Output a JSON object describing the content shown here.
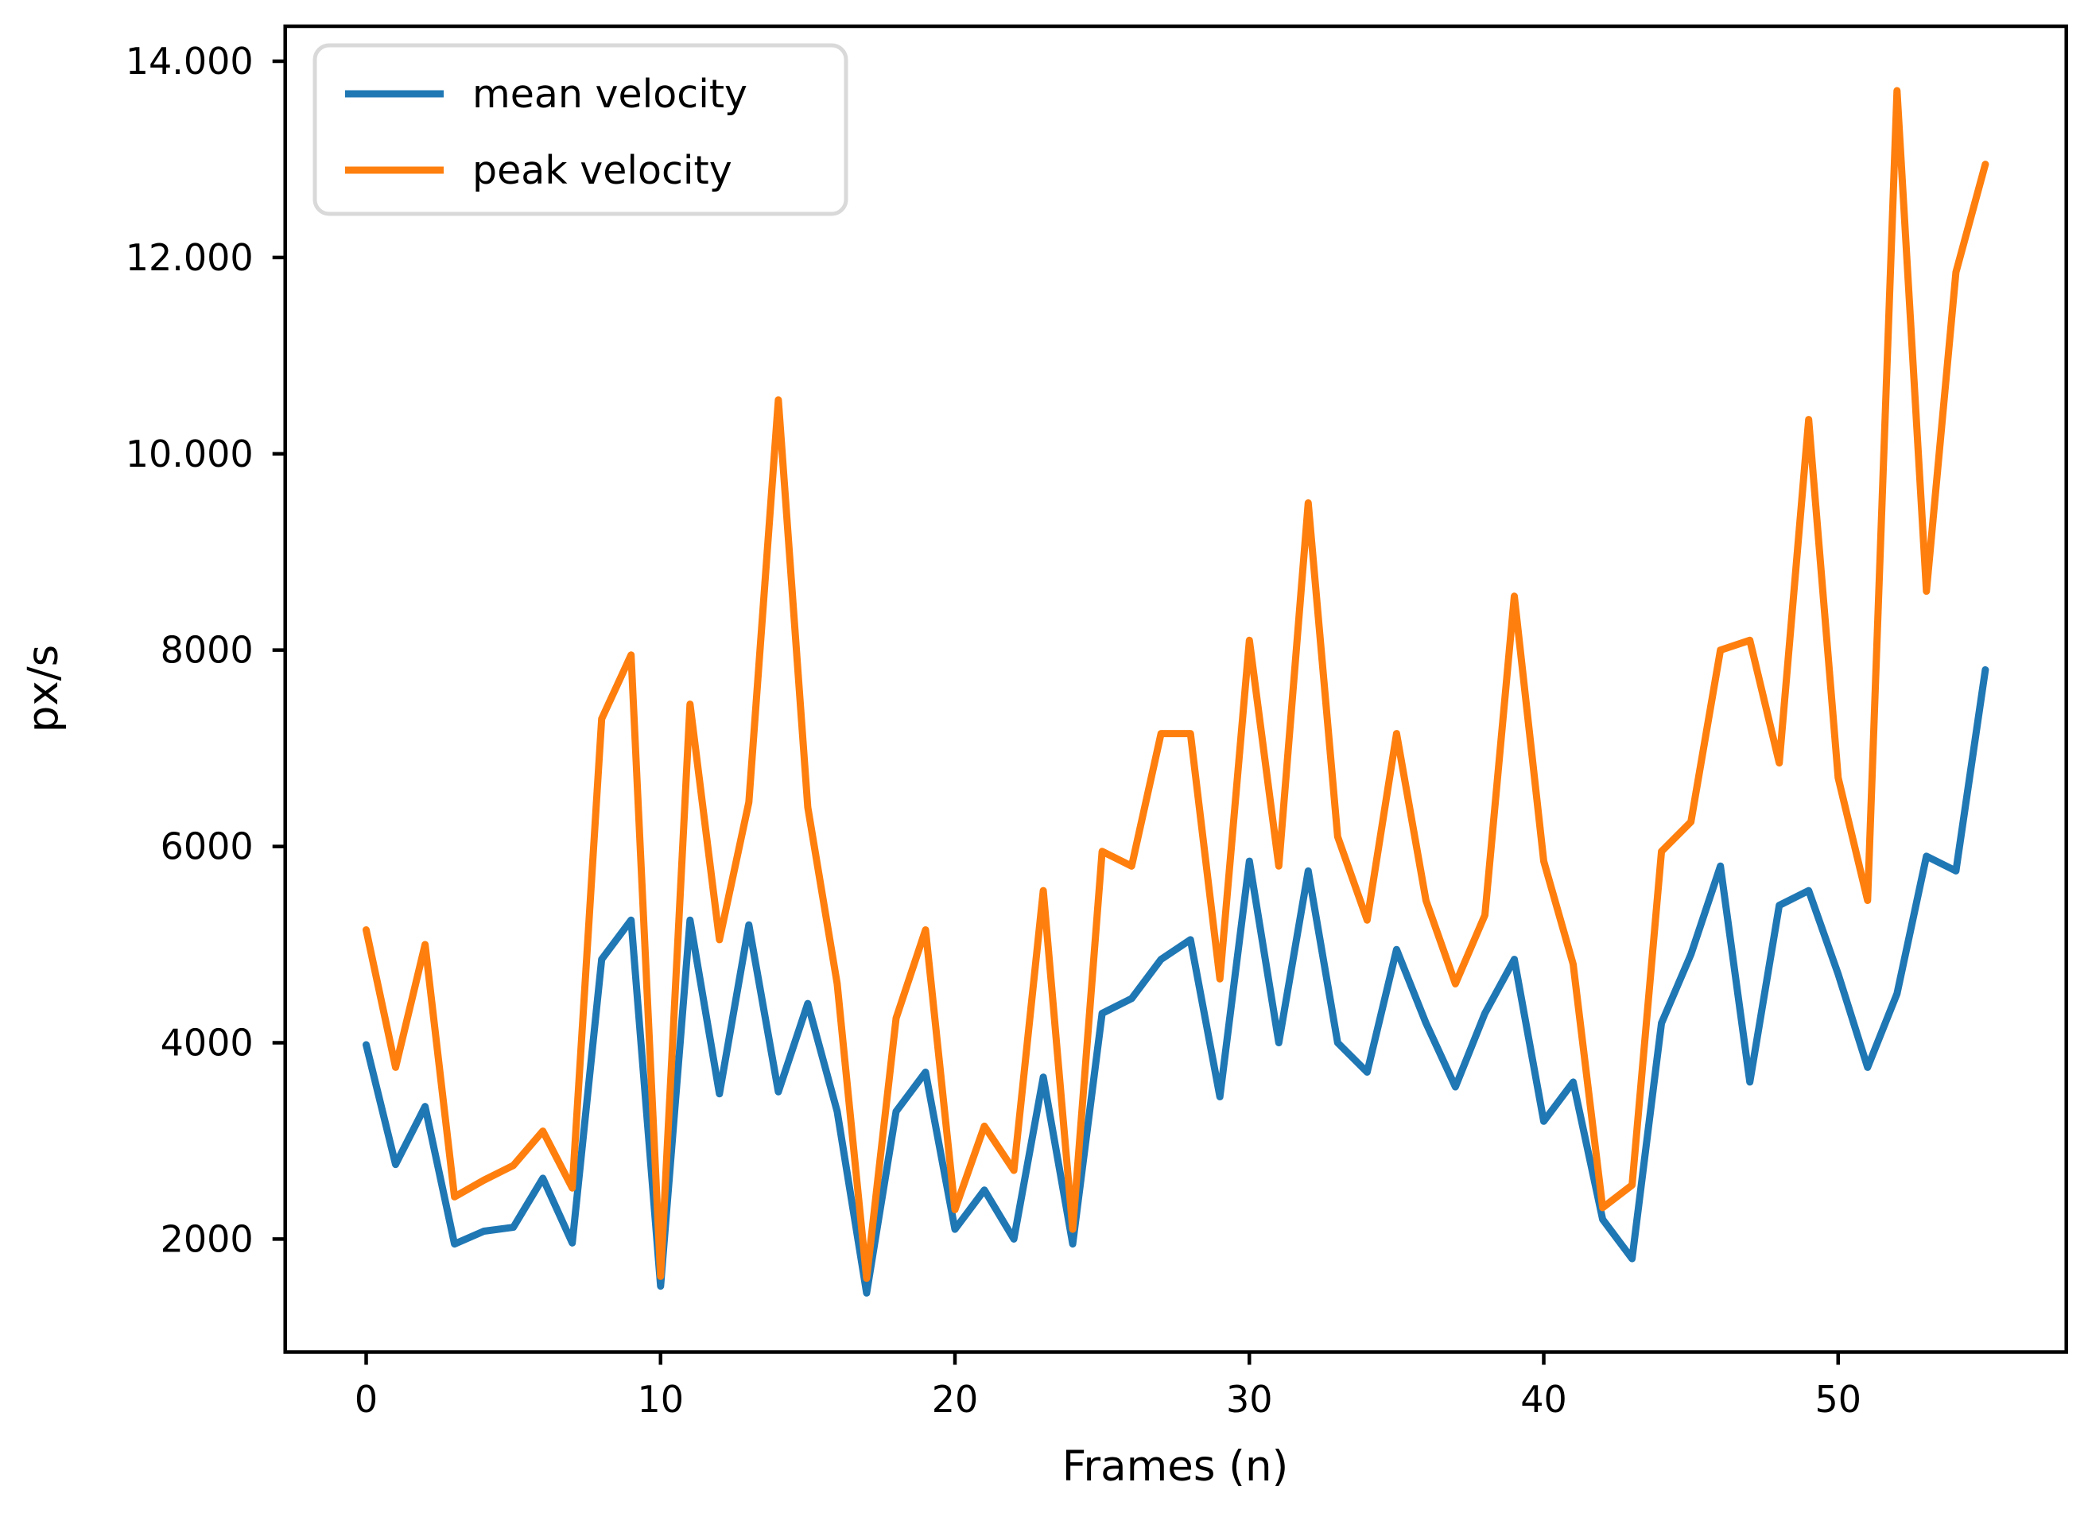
{
  "chart_data": {
    "type": "line",
    "title": "",
    "xlabel": "Frames (n)",
    "ylabel": "px/s",
    "x": [
      0,
      1,
      2,
      3,
      4,
      5,
      6,
      7,
      8,
      9,
      10,
      11,
      12,
      13,
      14,
      15,
      16,
      17,
      18,
      19,
      20,
      21,
      22,
      23,
      24,
      25,
      26,
      27,
      28,
      29,
      30,
      31,
      32,
      33,
      34,
      35,
      36,
      37,
      38,
      39,
      40,
      41,
      42,
      43,
      44,
      45,
      46,
      47,
      48,
      49,
      50,
      51,
      52,
      53,
      54,
      55
    ],
    "series": [
      {
        "name": "mean velocity",
        "color": "#1f77b4",
        "values": [
          3980,
          2760,
          3350,
          1950,
          2080,
          2120,
          2620,
          1960,
          4850,
          5250,
          1520,
          5250,
          3480,
          5200,
          3500,
          4400,
          3300,
          1450,
          3300,
          3700,
          2100,
          2500,
          2000,
          3650,
          1950,
          4300,
          4450,
          4850,
          5050,
          3450,
          5850,
          4000,
          5750,
          4000,
          3700,
          4950,
          4200,
          3550,
          4300,
          4850,
          3200,
          3600,
          2200,
          1800,
          4200,
          4900,
          5800,
          3600,
          5400,
          5550,
          4700,
          3750,
          4500,
          5900,
          5750,
          7800
        ]
      },
      {
        "name": "peak velocity",
        "color": "#ff7f0e",
        "values": [
          5150,
          3750,
          5000,
          2430,
          2600,
          2750,
          3100,
          2520,
          7300,
          7950,
          1620,
          7450,
          5050,
          6450,
          10550,
          6400,
          4600,
          1600,
          4250,
          5150,
          2300,
          3150,
          2700,
          5550,
          2100,
          5950,
          5800,
          7150,
          7150,
          4650,
          8100,
          5800,
          9500,
          6100,
          5250,
          7150,
          5450,
          4600,
          5300,
          8550,
          5850,
          4800,
          2320,
          2550,
          5950,
          6250,
          8000,
          8100,
          6850,
          10350,
          6700,
          5450,
          13700,
          8600,
          11850,
          12950
        ]
      }
    ],
    "xlim": [
      -2.75,
      57.75
    ],
    "ylim": [
      849,
      14356
    ],
    "x_ticks": [
      {
        "v": 0,
        "label": "0"
      },
      {
        "v": 10,
        "label": "10"
      },
      {
        "v": 20,
        "label": "20"
      },
      {
        "v": 30,
        "label": "30"
      },
      {
        "v": 40,
        "label": "40"
      },
      {
        "v": 50,
        "label": "50"
      }
    ],
    "y_ticks": [
      {
        "v": 2000,
        "label": "2000"
      },
      {
        "v": 4000,
        "label": "4000"
      },
      {
        "v": 6000,
        "label": "6000"
      },
      {
        "v": 8000,
        "label": "8000"
      },
      {
        "v": 10000,
        "label": "10.000"
      },
      {
        "v": 12000,
        "label": "12.000"
      },
      {
        "v": 14000,
        "label": "14.000"
      }
    ],
    "grid": false,
    "legend_position": "upper left",
    "line_width": 9,
    "background_color": "#ffffff",
    "spine_color": "#000000"
  }
}
